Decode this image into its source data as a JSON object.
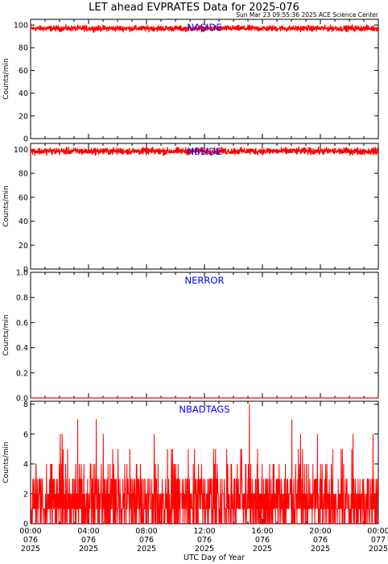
{
  "title": "LET ahead EVPRATES Data for 2025-076",
  "timestamp": "Sun Mar 23 09:55:36 2025 ACE Science Center",
  "colors": {
    "data": "#ff0000",
    "panel_label": "#0000ff",
    "axis": "#000000"
  },
  "chart_data": [
    {
      "type": "line",
      "label": "NASIDE",
      "ylabel": "Counts/min",
      "ylim": [
        0,
        105
      ],
      "yticks": [
        "0",
        "20",
        "40",
        "60",
        "80",
        "100"
      ],
      "xlim": [
        0,
        24
      ],
      "series": [
        {
          "mean": 97,
          "min": 93,
          "max": 101,
          "points_per_hour": 60
        }
      ]
    },
    {
      "type": "line",
      "label": "NBSIDE",
      "ylabel": "Counts/min",
      "ylim": [
        0,
        105
      ],
      "yticks": [
        "0",
        "20",
        "40",
        "60",
        "80",
        "100"
      ],
      "xlim": [
        0,
        24
      ],
      "series": [
        {
          "mean": 98,
          "min": 94,
          "max": 103,
          "points_per_hour": 60
        }
      ]
    },
    {
      "type": "line",
      "label": "NERROR",
      "ylabel": "Counts/min",
      "ylim": [
        0,
        1
      ],
      "yticks": [
        "0.0",
        "0.2",
        "0.4",
        "0.6",
        "0.8",
        "1.0"
      ],
      "xlim": [
        0,
        24
      ],
      "series": [
        {
          "mean": 0,
          "min": 0,
          "max": 0,
          "points_per_hour": 60
        }
      ]
    },
    {
      "type": "line",
      "label": "NBADTAGS",
      "ylabel": "Counts/min",
      "ylim": [
        0,
        8.2
      ],
      "yticks": [
        "0",
        "2",
        "4",
        "6",
        "8"
      ],
      "xlim": [
        0,
        24
      ],
      "series": [
        {
          "mean": 1.7,
          "min": 0,
          "max": 8,
          "points_per_hour": 60
        }
      ]
    }
  ],
  "x_ticks": [
    {
      "time": "00:00",
      "doy": "076",
      "year": "2025"
    },
    {
      "time": "04:00",
      "doy": "076",
      "year": "2025"
    },
    {
      "time": "08:00",
      "doy": "076",
      "year": "2025"
    },
    {
      "time": "12:00",
      "doy": "076",
      "year": "2025"
    },
    {
      "time": "16:00",
      "doy": "076",
      "year": "2025"
    },
    {
      "time": "20:00",
      "doy": "076",
      "year": "2025"
    },
    {
      "time": "00:00",
      "doy": "077",
      "year": "2025"
    }
  ],
  "xlabel": "UTC Day of Year"
}
